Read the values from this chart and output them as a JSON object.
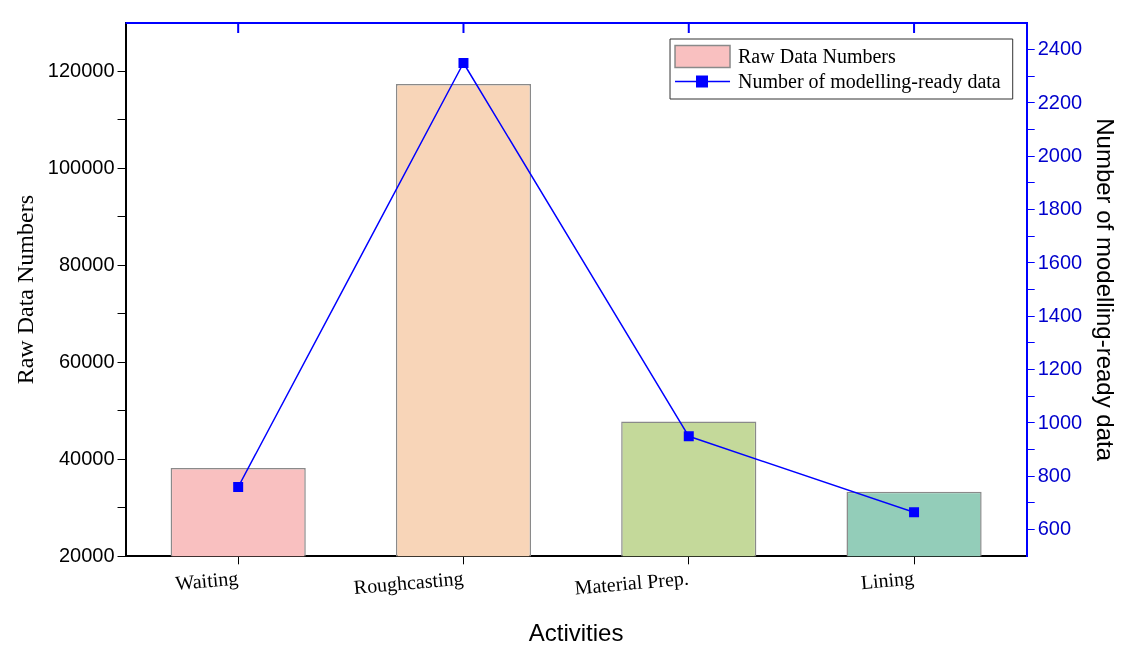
{
  "chart_data": {
    "type": "bar",
    "xlabel": "Activities",
    "ylabel": "Raw Data Numbers",
    "y2label": "Number of modelling-ready data",
    "categories": [
      "Waiting",
      "Roughcasting",
      "Material Prep.",
      "Lining"
    ],
    "series": [
      {
        "name": "Raw Data Numbers",
        "color": "#f9c0c0",
        "colors": [
          "#f9c0c0",
          "#f8d5b8",
          "#c4d99a",
          "#93cdb9"
        ],
        "values": [
          38200,
          117400,
          47800,
          33300
        ]
      },
      {
        "type": "line",
        "name": "Number of modelling-ready data",
        "color": "#0000ff",
        "axis": "y2",
        "marker": "square",
        "line_style": "solid",
        "values": [
          760,
          2350,
          950,
          665
        ]
      }
    ],
    "ylim": [
      20000,
      130000
    ],
    "yticks": [
      20000,
      {
        "value": 30000,
        "label": null
      },
      40000,
      {
        "value": 50000,
        "label": null
      },
      60000,
      {
        "value": 70000,
        "label": null
      },
      80000,
      {
        "value": 90000,
        "label": null
      },
      100000,
      {
        "value": 110000,
        "label": null
      },
      120000
    ],
    "y2lim": [
      500,
      2500
    ],
    "y2ticks": [
      600,
      {
        "value": 700,
        "label": null
      },
      800,
      {
        "value": 900,
        "label": null
      },
      1000,
      {
        "value": 1100,
        "label": null
      },
      1200,
      {
        "value": 1300,
        "label": null
      },
      1400,
      {
        "value": 1500,
        "label": null
      },
      1600,
      {
        "value": 1700,
        "label": null
      },
      1800,
      {
        "value": 1900,
        "label": null
      },
      2000,
      {
        "value": 2100,
        "label": null
      },
      2200,
      {
        "value": 2300,
        "label": null
      },
      2400
    ],
    "grid": false,
    "legend": "top right"
  }
}
